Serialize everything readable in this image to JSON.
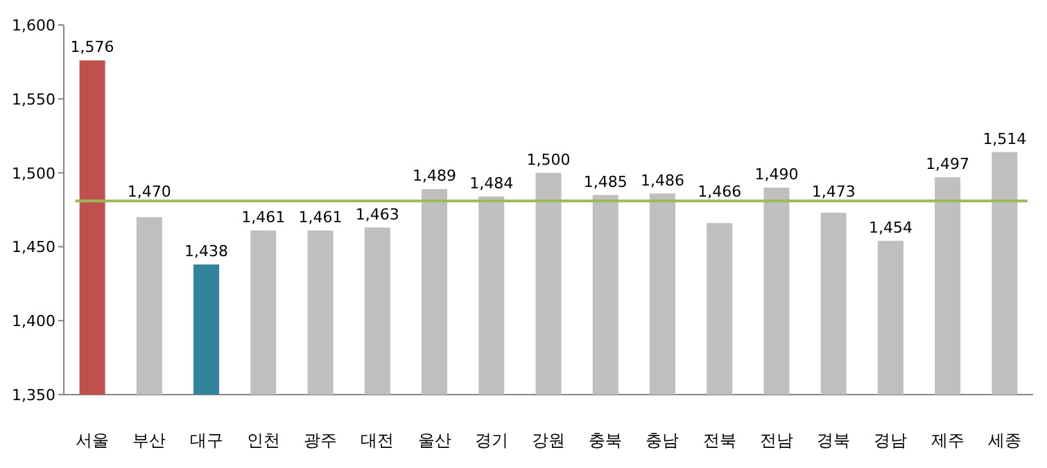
{
  "chart_data": {
    "type": "bar",
    "categories": [
      "서울",
      "부산",
      "대구",
      "인천",
      "광주",
      "대전",
      "울산",
      "경기",
      "강원",
      "충북",
      "충남",
      "전북",
      "전남",
      "경북",
      "경남",
      "제주",
      "세종"
    ],
    "values": [
      1576,
      1470,
      1438,
      1461,
      1461,
      1463,
      1489,
      1484,
      1500,
      1485,
      1486,
      1466,
      1490,
      1473,
      1454,
      1497,
      1514
    ],
    "colors": [
      "#c0504d",
      "#bfbfbf",
      "#31849b",
      "#bfbfbf",
      "#bfbfbf",
      "#bfbfbf",
      "#bfbfbf",
      "#bfbfbf",
      "#bfbfbf",
      "#bfbfbf",
      "#bfbfbf",
      "#bfbfbf",
      "#bfbfbf",
      "#bfbfbf",
      "#bfbfbf",
      "#bfbfbf",
      "#bfbfbf"
    ],
    "value_labels": [
      "1,576",
      "1,470",
      "1,438",
      "1,461",
      "1,461",
      "1,463",
      "1,489",
      "1,484",
      "1,500",
      "1,485",
      "1,486",
      "1,466",
      "1,490",
      "1,473",
      "1,454",
      "1,497",
      "1,514"
    ],
    "ylim": [
      1350,
      1600
    ],
    "yticks": [
      {
        "value": 1350,
        "label": "1,350"
      },
      {
        "value": 1400,
        "label": "1,400"
      },
      {
        "value": 1450,
        "label": "1,450"
      },
      {
        "value": 1500,
        "label": "1,500"
      },
      {
        "value": 1550,
        "label": "1,550"
      },
      {
        "value": 1600,
        "label": "1,600"
      }
    ],
    "ref_lines": [
      {
        "axis": "y",
        "value": 1481,
        "color": "#9bbb59"
      }
    ]
  }
}
